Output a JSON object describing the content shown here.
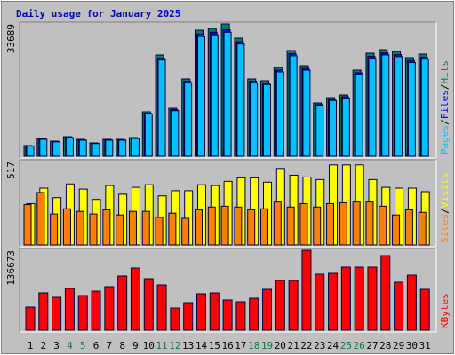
{
  "title": "Daily usage for January 2025",
  "separator": "/",
  "chart_data": [
    {
      "type": "bar",
      "ylim": [
        0,
        33689
      ],
      "yticks": [
        33689
      ],
      "series": [
        {
          "name": "Pages",
          "color": "#00c0ff",
          "values": [
            2580,
            4300,
            3650,
            4720,
            4080,
            3220,
            4080,
            4080,
            4510,
            10740,
            24490,
            11600,
            18690,
            30500,
            30930,
            31580,
            28570,
            18690,
            18260,
            21480,
            25560,
            21910,
            12890,
            14180,
            14820,
            20840,
            24920,
            25780,
            25350,
            23840,
            24700
          ]
        },
        {
          "name": "Files",
          "color": "#0000ff",
          "values": [
            2630,
            4390,
            3730,
            4820,
            4170,
            3290,
            4170,
            4170,
            4610,
            10970,
            25000,
            11840,
            19080,
            31140,
            31580,
            32240,
            29170,
            19080,
            18640,
            21930,
            26100,
            22370,
            13160,
            14480,
            15130,
            21270,
            25440,
            26320,
            25880,
            24350,
            25220
          ]
        },
        {
          "name": "Hits",
          "color": "#008060",
          "values": [
            2713,
            4522,
            3844,
            4974,
            4296,
            3392,
            4296,
            4296,
            4748,
            11305,
            25776,
            12209,
            19671,
            32106,
            32558,
            33689,
            30071,
            19671,
            19219,
            22610,
            26906,
            23062,
            13566,
            14923,
            15601,
            21932,
            26228,
            27132,
            26680,
            25098,
            26002
          ]
        }
      ]
    },
    {
      "type": "bar",
      "ylim": [
        0,
        517
      ],
      "yticks": [
        517
      ],
      "series": [
        {
          "name": "Sites",
          "color": "#ff8000",
          "values": [
            250,
            325,
            192,
            224,
            208,
            192,
            218,
            186,
            208,
            208,
            171,
            197,
            165,
            218,
            235,
            240,
            235,
            218,
            224,
            266,
            235,
            256,
            235,
            256,
            261,
            266,
            266,
            240,
            186,
            218,
            202
          ]
        },
        {
          "name": "Visits",
          "color": "#ffff00",
          "values": [
            256,
            352,
            293,
            378,
            346,
            282,
            368,
            314,
            357,
            373,
            304,
            336,
            336,
            373,
            368,
            394,
            416,
            416,
            389,
            474,
            432,
            421,
            405,
            496,
            496,
            496,
            405,
            357,
            352,
            352,
            330
          ]
        }
      ]
    },
    {
      "type": "bar",
      "ylim": [
        0,
        136673
      ],
      "yticks": [
        136673
      ],
      "categories": [
        "1",
        "2",
        "3",
        "4",
        "5",
        "6",
        "7",
        "8",
        "9",
        "10",
        "11",
        "12",
        "13",
        "14",
        "15",
        "16",
        "17",
        "18",
        "19",
        "20",
        "21",
        "22",
        "23",
        "24",
        "25",
        "26",
        "27",
        "28",
        "29",
        "30",
        "31"
      ],
      "highlighted_categories": [
        "4",
        "5",
        "11",
        "12",
        "18",
        "19",
        "25",
        "26"
      ],
      "highlight_color": "#008040",
      "series": [
        {
          "name": "KBytes",
          "color": "#ff0000",
          "values": [
            39483,
            63781,
            56188,
            71374,
            59225,
            66817,
            74411,
            92633,
            106301,
            88078,
            77447,
            37965,
            47077,
            62263,
            63781,
            51632,
            48595,
            54670,
            69856,
            85040,
            85040,
            136673,
            95670,
            97189,
            107820,
            107820,
            107820,
            127563,
            82003,
            94152,
            69856
          ]
        }
      ]
    }
  ]
}
